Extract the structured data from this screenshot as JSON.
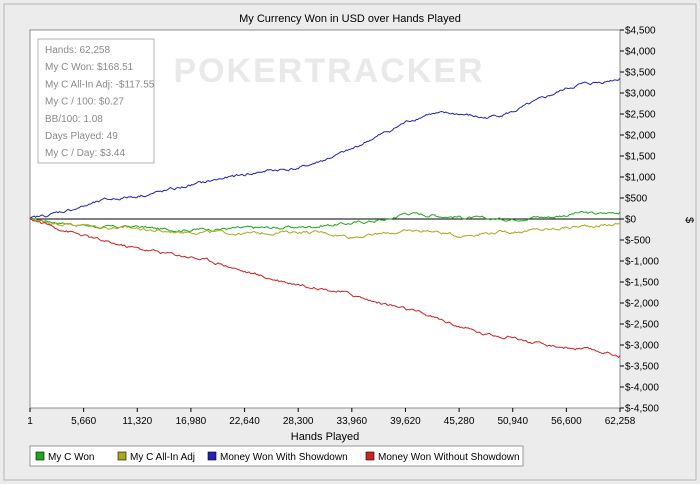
{
  "chart_data": {
    "type": "line",
    "title": "My Currency Won in USD over Hands Played",
    "xlabel": "Hands Played",
    "ylabel": "$",
    "xlim": [
      1,
      62258
    ],
    "ylim": [
      -4500,
      4500
    ],
    "x_ticks": [
      1,
      5660,
      11320,
      16980,
      22640,
      28300,
      33960,
      39620,
      45280,
      50940,
      56600,
      62258
    ],
    "x_tick_labels": [
      "1",
      "5,660",
      "11,320",
      "16,980",
      "22,640",
      "28,300",
      "33,960",
      "39,620",
      "45,280",
      "50,940",
      "56,600",
      "62,258"
    ],
    "y_ticks": [
      4500,
      4000,
      3500,
      3000,
      2500,
      2000,
      1500,
      1000,
      500,
      0,
      -500,
      -1000,
      -1500,
      -2000,
      -2500,
      -3000,
      -3500,
      -4000,
      -4500
    ],
    "y_tick_labels": [
      "$4,500",
      "$4,000",
      "$3,500",
      "$3,000",
      "$2,500",
      "$2,000",
      "$1,500",
      "$1,000",
      "$500",
      "$0",
      "$-500",
      "$-1,000",
      "$-1,500",
      "$-2,000",
      "$-2,500",
      "$-3,000",
      "$-3,500",
      "$-4,000",
      "$-4,500"
    ],
    "grid": false,
    "legend_position": "bottom",
    "watermark": "POKERTRACKER",
    "stats_box": [
      "Hands: 62,258",
      "My C Won: $168.51",
      "My C All-In Adj: -$117.55",
      "My C / 100: $0.27",
      "BB/100: 1.08",
      "Days Played: 49",
      "My C / Day: $3.44"
    ],
    "series": [
      {
        "name": "My C Won",
        "color": "#1fa81f",
        "x": [
          1,
          2000,
          5660,
          8000,
          11320,
          14000,
          16980,
          20000,
          22640,
          25000,
          28300,
          31000,
          33960,
          36000,
          38000,
          39620,
          42000,
          45280,
          48000,
          50940,
          53000,
          55000,
          56600,
          58000,
          60000,
          62258
        ],
        "y": [
          0,
          -50,
          -150,
          -200,
          -180,
          -250,
          -250,
          -230,
          -220,
          -210,
          -200,
          -150,
          -100,
          -50,
          0,
          150,
          100,
          50,
          0,
          0,
          50,
          50,
          100,
          150,
          120,
          168.51
        ]
      },
      {
        "name": "My C All-In Adj",
        "color": "#a8a81a",
        "x": [
          1,
          2000,
          5660,
          8000,
          11320,
          14000,
          16980,
          20000,
          22640,
          25000,
          28300,
          31000,
          33960,
          36000,
          38000,
          39620,
          42000,
          45280,
          48000,
          50940,
          53000,
          55000,
          56600,
          58000,
          60000,
          62258
        ],
        "y": [
          0,
          -80,
          -150,
          -200,
          -220,
          -300,
          -300,
          -320,
          -350,
          -330,
          -300,
          -330,
          -420,
          -380,
          -330,
          -300,
          -270,
          -400,
          -330,
          -300,
          -270,
          -250,
          -200,
          -180,
          -150,
          -117.55
        ]
      },
      {
        "name": "Money Won With Showdown",
        "color": "#2222b5",
        "x": [
          1,
          2000,
          5660,
          8000,
          11320,
          14000,
          16980,
          20000,
          22640,
          25000,
          28300,
          31000,
          33960,
          36000,
          38000,
          39620,
          42000,
          45280,
          48000,
          50940,
          53000,
          55000,
          56600,
          58000,
          60000,
          62258
        ],
        "y": [
          0,
          100,
          300,
          450,
          550,
          650,
          800,
          950,
          1050,
          1150,
          1200,
          1400,
          1650,
          1900,
          2100,
          2300,
          2500,
          2500,
          2400,
          2550,
          2750,
          2950,
          3100,
          3200,
          3250,
          3350
        ]
      },
      {
        "name": "Money Won Without Showdown",
        "color": "#cc2222",
        "x": [
          1,
          2000,
          5660,
          8000,
          11320,
          14000,
          16980,
          20000,
          22640,
          25000,
          28300,
          31000,
          33960,
          36000,
          38000,
          39620,
          42000,
          45280,
          48000,
          50940,
          53000,
          55000,
          56600,
          58000,
          60000,
          62258
        ],
        "y": [
          0,
          -150,
          -400,
          -550,
          -700,
          -800,
          -900,
          -1050,
          -1250,
          -1400,
          -1550,
          -1650,
          -1800,
          -1950,
          -2050,
          -2150,
          -2300,
          -2550,
          -2750,
          -2800,
          -2950,
          -3050,
          -3050,
          -3100,
          -3150,
          -3250
        ]
      }
    ]
  }
}
